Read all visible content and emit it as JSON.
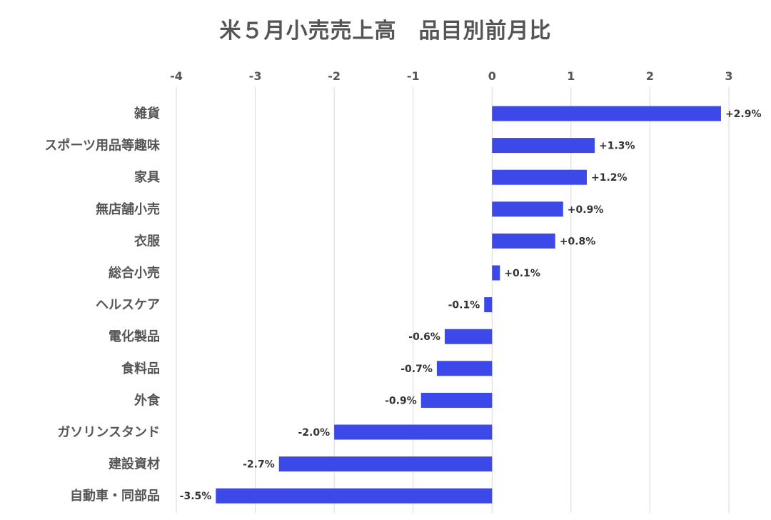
{
  "chart_data": {
    "type": "bar",
    "orientation": "horizontal",
    "title": "米５月小売売上高　品目別前月比",
    "xlim": [
      -4,
      3
    ],
    "ticks": [
      "-4",
      "-3",
      "-2",
      "-1",
      "0",
      "1",
      "2",
      "3"
    ],
    "tick_values": [
      -4,
      -3,
      -2,
      -1,
      0,
      1,
      2,
      3
    ],
    "grid": true,
    "categories": [
      "雑貨",
      "スポーツ用品等趣味",
      "家具",
      "無店舗小売",
      "衣服",
      "総合小売",
      "ヘルスケア",
      "電化製品",
      "食料品",
      "外食",
      "ガソリンスタンド",
      "建設資材",
      "自動車・同部品"
    ],
    "values": [
      2.9,
      1.3,
      1.2,
      0.9,
      0.8,
      0.1,
      -0.1,
      -0.6,
      -0.7,
      -0.9,
      -2.0,
      -2.7,
      -3.5
    ],
    "data_labels": [
      "+2.9%",
      "+1.3%",
      "+1.2%",
      "+0.9%",
      "+0.8%",
      "+0.1%",
      "-0.1%",
      "-0.6%",
      "-0.7%",
      "-0.9%",
      "-2.0%",
      "-2.7%",
      "-3.5%"
    ],
    "bar_color": "#3c48e8",
    "grid_color": "#d9d9d9"
  }
}
